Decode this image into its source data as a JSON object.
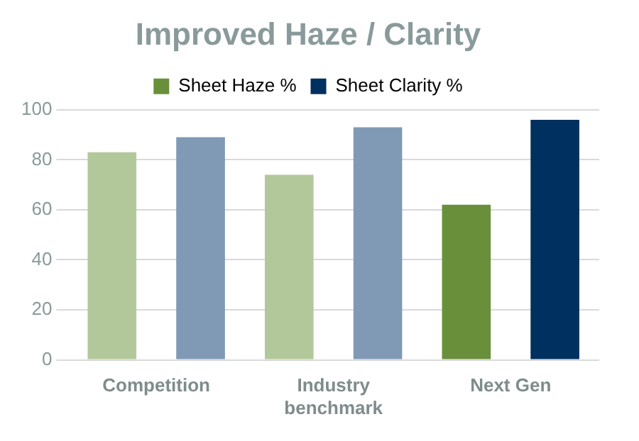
{
  "chart_data": {
    "type": "bar",
    "title": "Improved Haze / Clarity",
    "categories": [
      "Competition",
      "Industry benchmark",
      "Next Gen"
    ],
    "series": [
      {
        "name": "Sheet Haze %",
        "color": "#6a8f3a",
        "colors": [
          "#b2c89a",
          "#b2c89a",
          "#6a8f3a"
        ],
        "values": [
          83,
          74,
          62
        ]
      },
      {
        "name": "Sheet Clarity %",
        "color": "#00305f",
        "colors": [
          "#8099b5",
          "#8099b5",
          "#00305f"
        ],
        "values": [
          89,
          93,
          96
        ]
      }
    ],
    "ylim": [
      0,
      100
    ],
    "yticks": [
      0,
      20,
      40,
      60,
      80,
      100
    ],
    "grid": "y",
    "legend": "top"
  }
}
